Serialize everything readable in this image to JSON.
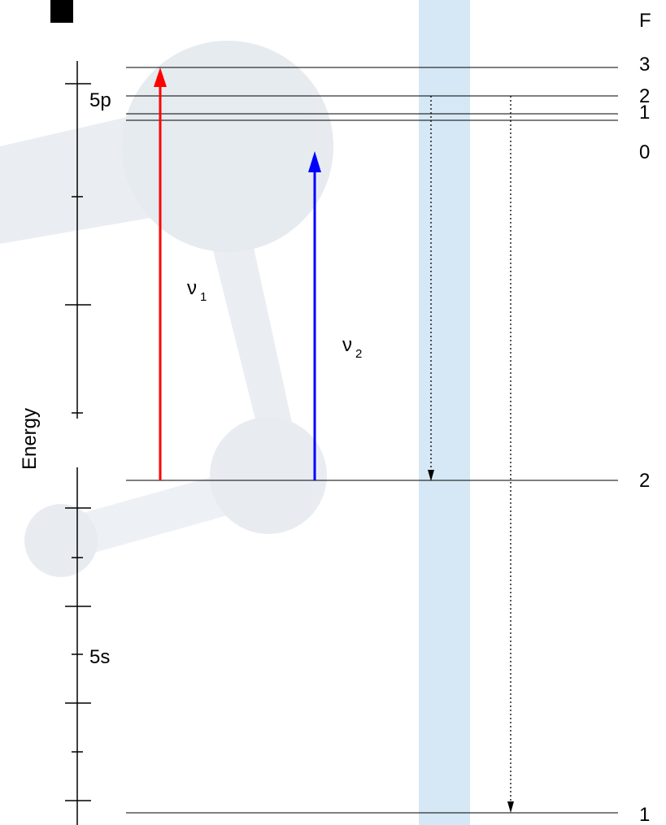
{
  "header": "F",
  "upper_state": {
    "label": "5p",
    "levels": [
      {
        "F": "3"
      },
      {
        "F": "2"
      },
      {
        "F": "1"
      },
      {
        "F": "0"
      }
    ]
  },
  "lower_state": {
    "label": "5s",
    "levels": [
      {
        "F": "2"
      },
      {
        "F": "1"
      }
    ]
  },
  "axis_label": "Energy",
  "transitions": [
    {
      "symbol": "ν",
      "sub": "1"
    },
    {
      "symbol": "ν",
      "sub": "2"
    }
  ]
}
